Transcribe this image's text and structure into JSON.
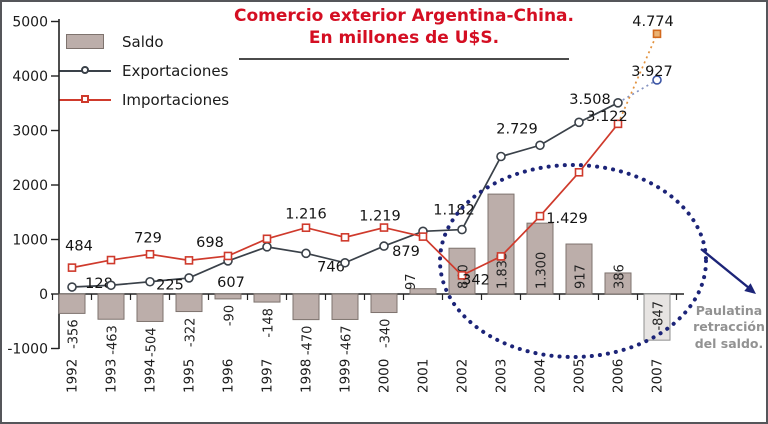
{
  "chart_data": {
    "type": "combo-bar-line",
    "title": "Comercio exterior Argentina-China.",
    "subtitle": "En millones de U$S.",
    "title_color": "#d40e22",
    "categories": [
      "1992",
      "1993",
      "1994",
      "1995",
      "1996",
      "1997",
      "1998",
      "1999",
      "2000",
      "2001",
      "2002",
      "2003",
      "2004",
      "2005",
      "2006",
      "2007"
    ],
    "ylim": [
      -1000,
      5000
    ],
    "yticks": [
      5000,
      4000,
      3000,
      2000,
      1000,
      0,
      -1000
    ],
    "ytick_labels": [
      "5000",
      "4000",
      "3000",
      "2000",
      "1000",
      "0",
      "-1000"
    ],
    "grid": false,
    "legend_position": "top-left",
    "projected_index": 15,
    "series": [
      {
        "name": "Saldo",
        "type": "bar",
        "color": "#bcaeaa",
        "stroke": "#7e736e",
        "projected_fill": "#e7e4e2",
        "projected_stroke": "#8f8f8f",
        "values": [
          -356,
          -463,
          -504,
          -322,
          -90,
          -148,
          -470,
          -467,
          -340,
          97,
          840,
          1833,
          1300,
          917,
          386,
          -847
        ],
        "labels": [
          "-356",
          "-463",
          "-504",
          "-322",
          "-90",
          "-148",
          "-470",
          "-467",
          "-340",
          "97",
          "840",
          "1.833",
          "1.300",
          "917",
          "386",
          "-847"
        ]
      },
      {
        "name": "Exportaciones",
        "type": "line",
        "color": "#3a4149",
        "marker": "circle",
        "marker_fill": "#ffffff",
        "projection_color": "#8593c0",
        "projection_marker_stroke": "#3c55a5",
        "projection_marker_fill": "#ffffff",
        "values": [
          128,
          160,
          225,
          295,
          607,
          865,
          746,
          573,
          879,
          1150,
          1182,
          2523,
          2729,
          3150,
          3508,
          3927
        ],
        "point_labels": {
          "0": "128",
          "2": "225",
          "4": "607",
          "6": "746",
          "8": "879",
          "10": "1.182",
          "12": "2.729",
          "14": "3.508",
          "15": "3.927"
        }
      },
      {
        "name": "Importaciones",
        "type": "line",
        "color": "#cf3a2c",
        "marker": "square",
        "marker_fill": "#ffffff",
        "projection_color": "#e2923e",
        "projection_marker_stroke": "#d2691e",
        "projection_marker_fill": "#eab273",
        "values": [
          484,
          623,
          729,
          617,
          698,
          1013,
          1216,
          1040,
          1219,
          1053,
          342,
          690,
          1429,
          2233,
          3122,
          4774
        ],
        "point_labels": {
          "0": "484",
          "2": "729",
          "4": "698",
          "6": "1.216",
          "8": "1.219",
          "10": "342",
          "12": "1.429",
          "14": "3.122",
          "15": "4.774"
        }
      }
    ],
    "highlight_ellipse_color": "#1c2478",
    "annotation": {
      "lines": [
        "Paulatina",
        "retracción",
        "del saldo."
      ],
      "color": "#929292"
    }
  }
}
